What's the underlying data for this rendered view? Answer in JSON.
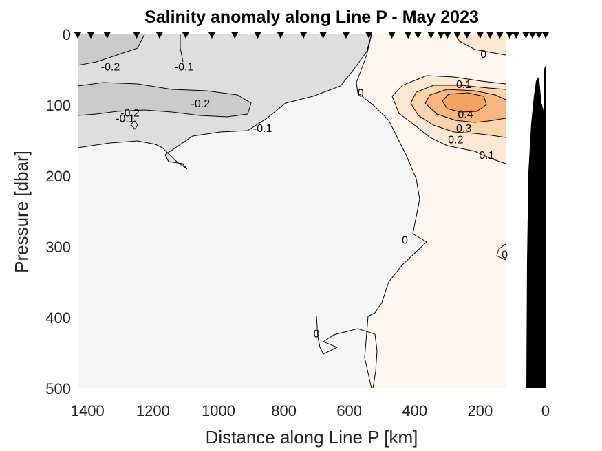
{
  "chart_data": {
    "type": "heatmap",
    "title": "Salinity anomaly along Line P - May 2023",
    "xlabel": "Distance along Line P [km]",
    "ylabel": "Pressure [dbar]",
    "xlim": [
      1430,
      0
    ],
    "ylim": [
      0,
      500
    ],
    "x_reversed": true,
    "y_reversed": true,
    "x_ticks": [
      1400,
      1200,
      1000,
      800,
      600,
      400,
      200,
      0
    ],
    "y_ticks": [
      0,
      100,
      200,
      300,
      400,
      500
    ],
    "grid": false,
    "legend": "none",
    "station_positions_km": [
      1430,
      1390,
      1340,
      1250,
      1180,
      1100,
      1020,
      950,
      880,
      810,
      740,
      680,
      610,
      540,
      470,
      420,
      390,
      350,
      320,
      300,
      270,
      240,
      200,
      170,
      140,
      110,
      90,
      60,
      40,
      20,
      0
    ],
    "contour_levels": [
      -0.2,
      -0.1,
      0,
      0.1,
      0.2,
      0.3,
      0.4
    ],
    "colors": {
      "neg_0_2": "#cbcbcb",
      "neg_0_1": "#dedede",
      "near_zero_neg": "#f6f6f6",
      "near_zero_pos": "#fdf7f0",
      "pos_0_1": "#fde8d3",
      "pos_0_2": "#fbd3ad",
      "pos_0_3": "#f8b67e",
      "pos_0_4": "#f4a360",
      "bathymetry": "#000000"
    },
    "contour_labels": [
      {
        "text": "-0.2",
        "x": 1330,
        "y": 45
      },
      {
        "text": "-0.1",
        "x": 1105,
        "y": 45
      },
      {
        "text": "-0.2",
        "x": 1055,
        "y": 97
      },
      {
        "text": "-0.2",
        "x": 1270,
        "y": 110
      },
      {
        "text": "-0.1",
        "x": 1285,
        "y": 118
      },
      {
        "text": "-0.1",
        "x": 865,
        "y": 132
      },
      {
        "text": "0",
        "x": 190,
        "y": 27
      },
      {
        "text": "0",
        "x": 565,
        "y": 82
      },
      {
        "text": "0.1",
        "x": 250,
        "y": 70
      },
      {
        "text": "0.4",
        "x": 245,
        "y": 112
      },
      {
        "text": "0.3",
        "x": 250,
        "y": 132
      },
      {
        "text": "0.2",
        "x": 275,
        "y": 148
      },
      {
        "text": "0.1",
        "x": 180,
        "y": 170
      },
      {
        "text": "0",
        "x": 430,
        "y": 290
      },
      {
        "text": "0",
        "x": 125,
        "y": 310
      },
      {
        "text": "0",
        "x": 700,
        "y": 422
      }
    ]
  }
}
